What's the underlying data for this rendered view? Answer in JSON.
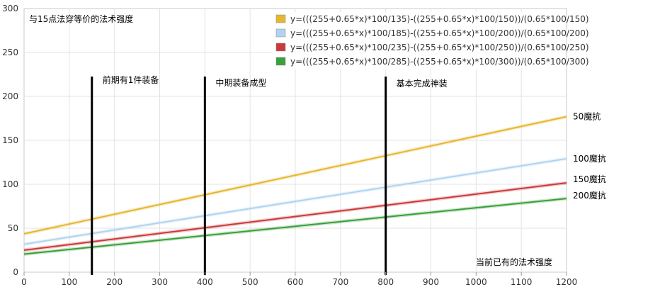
{
  "chart_data": {
    "type": "line",
    "title": "与15点法穿等价的法术强度",
    "xlabel": "当前已有的法术强度",
    "ylabel": "",
    "xlim": [
      0,
      1200
    ],
    "ylim": [
      0,
      300
    ],
    "x_ticks": [
      "0",
      "100",
      "200",
      "300",
      "400",
      "500",
      "600",
      "700",
      "800",
      "900",
      "1000",
      "1100",
      "1200"
    ],
    "y_ticks": [
      "0",
      "50",
      "100",
      "150",
      "200",
      "250",
      "300"
    ],
    "grid": true,
    "legend_position": "top-right",
    "series": [
      {
        "name": "y=(((255+0.65*x)*100/135)-((255+0.65*x)*100/150))/(0.65*100/150)",
        "color": "#e6b830",
        "end_label": "50魔抗",
        "points": [
          [
            0,
            43.6
          ],
          [
            1200,
            176.9
          ]
        ]
      },
      {
        "name": "y=(((255+0.65*x)*100/185)-((255+0.65*x)*100/200))/(0.65*100/200)",
        "color": "#b0d4f0",
        "end_label": "100魔抗",
        "points": [
          [
            0,
            31.8
          ],
          [
            1200,
            129.1
          ]
        ]
      },
      {
        "name": "y=(((255+0.65*x)*100/235)-((255+0.65*x)*100/250))/(0.65*100/250)",
        "color": "#cc3a3a",
        "end_label": "150魔抗",
        "points": [
          [
            0,
            25.0
          ],
          [
            1200,
            101.6
          ]
        ]
      },
      {
        "name": "y=(((255+0.65*x)*100/285)-((255+0.65*x)*100/300))/(0.65*100/300)",
        "color": "#3aa03a",
        "end_label": "200魔抗",
        "points": [
          [
            0,
            20.6
          ],
          [
            1200,
            83.8
          ]
        ]
      }
    ],
    "vertical_markers": [
      {
        "x": 150,
        "label": "前期有1件装备"
      },
      {
        "x": 400,
        "label": "中期装备成型"
      },
      {
        "x": 800,
        "label": "基本完成神装"
      }
    ]
  }
}
